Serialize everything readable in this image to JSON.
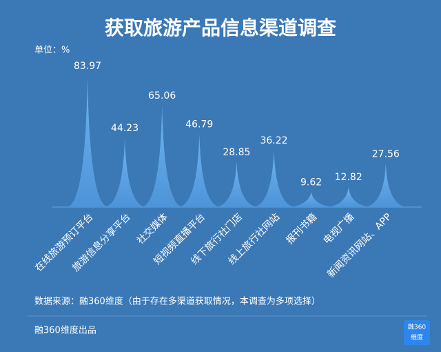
{
  "chart_data": {
    "type": "spike",
    "title": "获取旅游产品信息渠道调查",
    "unit": "单位：%",
    "categories": [
      "在线旅游预订平台",
      "旅游信息分享平台",
      "社交媒体",
      "短视频直播平台",
      "线下旅行社门店",
      "线上旅行社网站",
      "报刊书籍",
      "电视广播",
      "新闻资讯网站、APP"
    ],
    "values": [
      83.97,
      44.23,
      65.06,
      46.79,
      28.85,
      36.22,
      9.62,
      12.82,
      27.56
    ],
    "color": "#5ea6e6",
    "source": "数据来源：融360维度（由于存在多渠道获取情况，本调查为多项选择）",
    "footer": "融360维度出品",
    "logo": [
      "融360",
      "维度"
    ]
  }
}
